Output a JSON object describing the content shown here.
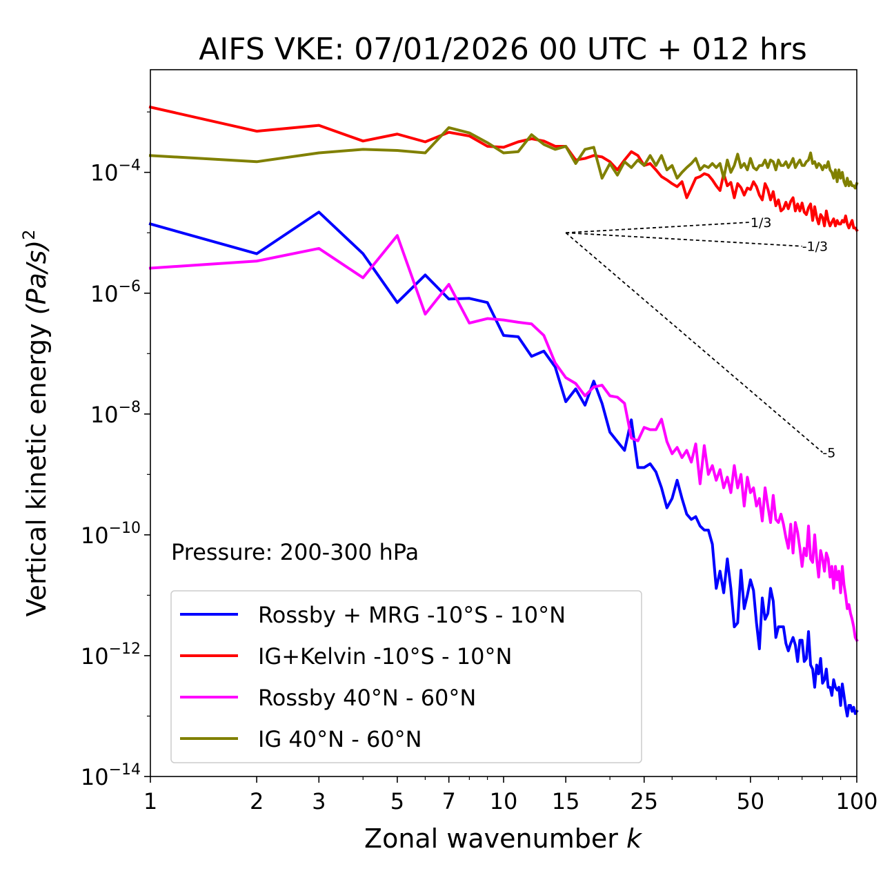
{
  "chart_data": {
    "type": "line",
    "title": "AIFS VKE: 07/01/2026 00 UTC + 012 hrs",
    "xlabel": "Zonal wavenumber ",
    "xlabel_italic": "k",
    "ylabel": "Vertical kinetic energy ",
    "ylabel_italic": "(Pa/s)",
    "ylabel_sup": "2",
    "xscale": "log",
    "yscale": "log",
    "xlim": [
      1,
      100
    ],
    "ylim": [
      1e-14,
      0.005
    ],
    "xticks": [
      1,
      2,
      3,
      5,
      7,
      10,
      15,
      25,
      50,
      100
    ],
    "xtick_labels": [
      "1",
      "2",
      "3",
      "5",
      "7",
      "10",
      "15",
      "25",
      "50",
      "100"
    ],
    "yticks": [
      {
        "base": "10",
        "exp": "−14",
        "value": 1e-14
      },
      {
        "base": "10",
        "exp": "−12",
        "value": 1e-12
      },
      {
        "base": "10",
        "exp": "−10",
        "value": 1e-10
      },
      {
        "base": "10",
        "exp": "−8",
        "value": 1e-08
      },
      {
        "base": "10",
        "exp": "−6",
        "value": 1e-06
      },
      {
        "base": "10",
        "exp": "−4",
        "value": 0.0001
      }
    ],
    "annotation": "Pressure: 200-300 hPa",
    "legend_position": "lower-left",
    "series": [
      {
        "name": "Rossby + MRG -10°S - 10°N",
        "color": "#0000ff",
        "x_start": 1,
        "values": [
          1.4e-05,
          4.5e-06,
          2.2e-05,
          4.5e-06,
          7e-07,
          2e-06,
          8e-07,
          8.2e-07,
          7e-07,
          2e-07,
          1.9e-07,
          9e-08,
          1.1e-07,
          6e-08,
          1.6e-08,
          2.6e-08,
          1.4e-08,
          3.5e-08,
          1.5e-08,
          5e-09,
          3.5e-09,
          2.5e-09,
          8e-09,
          1.3e-09,
          1.3e-09,
          1.5e-09,
          1.1e-09,
          6e-10,
          2.8e-10,
          4e-10,
          8e-10,
          4e-10,
          2.2e-10,
          1.8e-10,
          2e-10,
          1.4e-10,
          1.2e-10,
          1.2e-10,
          7e-11,
          1.3e-11,
          2.5e-11,
          1.1e-11,
          4e-11,
          1.3e-11,
          3e-12,
          3.5e-12,
          2.6e-11,
          6e-12,
          1e-11,
          1.8e-11,
          1.2e-11,
          3.5e-12,
          1.3e-12,
          9e-12,
          4e-12,
          5e-12,
          1.3e-11,
          8e-12,
          2e-12,
          3e-12,
          3e-12,
          3e-12,
          1.6e-12,
          1.2e-12,
          1.6e-12,
          2e-12,
          1.5e-12,
          8e-13,
          1.8e-12,
          1.8e-12,
          8e-13,
          9e-13,
          2.5e-12,
          7e-13,
          6e-13,
          3e-13,
          7e-13,
          5e-13,
          9e-13,
          3.5e-13,
          4e-13,
          6e-13,
          3e-13,
          3e-13,
          2.2e-13,
          4e-13,
          3e-13,
          2.7e-13,
          3e-13,
          1.5e-13,
          3.4e-13,
          2.2e-13,
          1.4e-13,
          1e-13,
          1.5e-13,
          1.5e-13,
          1.2e-13,
          1.4e-13,
          1.1e-13,
          1.2e-13
        ]
      },
      {
        "name": "IG+Kelvin -10°S - 10°N",
        "color": "#ff0000",
        "x_start": 1,
        "values": [
          0.0012,
          0.00048,
          0.0006,
          0.00033,
          0.00043,
          0.00032,
          0.00046,
          0.0004,
          0.00027,
          0.00026,
          0.00032,
          0.00036,
          0.00033,
          0.00027,
          0.00027,
          0.00016,
          0.00017,
          0.00019,
          0.00018,
          0.00015,
          0.00011,
          0.00016,
          0.00022,
          0.00019,
          0.00013,
          0.00014,
          0.00011,
          8.5e-05,
          7.5e-05,
          6.5e-05,
          5.8e-05,
          7e-05,
          3.8e-05,
          5.5e-05,
          8e-05,
          8.5e-05,
          9.5e-05,
          9e-05,
          7.5e-05,
          6e-05,
          5e-05,
          9.5e-05,
          6e-05,
          6.8e-05,
          3.8e-05,
          6.5e-05,
          5.6e-05,
          4.2e-05,
          5.5e-05,
          5.2e-05,
          7e-05,
          5.8e-05,
          4.2e-05,
          3.5e-05,
          6.5e-05,
          5.2e-05,
          3.5e-05,
          4.8e-05,
          2.8e-05,
          3.5e-05,
          2.3e-05,
          2.5e-05,
          3.2e-05,
          2.5e-05,
          3.3e-05,
          3.8e-05,
          2.3e-05,
          3e-05,
          2.3e-05,
          3.1e-05,
          2.2e-05,
          2e-05,
          2.6e-05,
          3e-05,
          1.6e-05,
          2.7e-05,
          1.8e-05,
          1.4e-05,
          2e-05,
          1.8e-05,
          1.3e-05,
          2.3e-05,
          1.6e-05,
          1.3e-05,
          1.5e-05,
          1.7e-05,
          1.3e-05,
          1.6e-05,
          1.4e-05,
          1.4e-05,
          1.6e-05,
          1.5e-05,
          1.9e-05,
          1.4e-05,
          1.2e-05,
          1.4e-05,
          1.6e-05,
          1.2e-05,
          1.2e-05,
          1.1e-05
        ]
      },
      {
        "name": "Rossby 40°N - 60°N",
        "color": "#ff00ff",
        "x_start": 1,
        "values": [
          2.6e-06,
          3.4e-06,
          5.5e-06,
          1.8e-06,
          9e-06,
          4.5e-07,
          1.4e-06,
          3.2e-07,
          3.8e-07,
          3.6e-07,
          3.3e-07,
          3.1e-07,
          2e-07,
          7e-08,
          4e-08,
          3.2e-08,
          2e-08,
          2.8e-08,
          3e-08,
          2e-08,
          1.9e-08,
          1.5e-08,
          4e-09,
          3.6e-09,
          6e-09,
          5.5e-09,
          5.5e-09,
          8.2e-09,
          3.5e-09,
          2.2e-09,
          2.8e-09,
          1.9e-09,
          2.5e-09,
          1.6e-09,
          3.2e-09,
          7e-10,
          3e-09,
          1e-09,
          1.4e-09,
          8e-10,
          1.2e-09,
          6e-10,
          9e-10,
          5e-10,
          1.4e-09,
          6e-10,
          1e-09,
          3e-10,
          9e-10,
          5e-10,
          6e-10,
          3e-10,
          4e-10,
          1.7e-10,
          6e-10,
          3e-10,
          1.6e-10,
          4.5e-10,
          1.8e-10,
          1.6e-10,
          2.2e-10,
          1.5e-10,
          9e-11,
          6e-11,
          1.5e-10,
          5e-11,
          1.6e-10,
          1.1e-10,
          6e-11,
          3e-11,
          6e-11,
          4.5e-11,
          1.4e-10,
          4e-11,
          3.5e-11,
          1e-10,
          4e-11,
          2e-11,
          5.5e-11,
          4e-11,
          2.5e-11,
          5e-11,
          4e-11,
          2e-11,
          3e-11,
          1.3e-11,
          3e-11,
          1.8e-11,
          2.5e-11,
          1.1e-11,
          3e-11,
          1.5e-11,
          1e-11,
          6e-12,
          7e-12,
          5e-12,
          4e-12,
          3e-12,
          2e-12,
          1.8e-12
        ]
      },
      {
        "name": "IG 40°N - 60°N",
        "color": "#808000",
        "x_start": 1,
        "values": [
          0.00019,
          0.00015,
          0.00021,
          0.00024,
          0.00023,
          0.00021,
          0.00055,
          0.00045,
          0.00031,
          0.00021,
          0.00022,
          0.00042,
          0.00029,
          0.00024,
          0.00027,
          0.00014,
          0.00024,
          0.00026,
          8e-05,
          0.00014,
          9e-05,
          0.00015,
          0.00012,
          0.00016,
          0.00013,
          0.00019,
          0.00013,
          0.00019,
          0.00011,
          0.00013,
          8e-05,
          0.0001,
          0.00012,
          0.00014,
          0.00017,
          0.00011,
          0.00013,
          0.00012,
          0.00014,
          0.00012,
          0.00014,
          8e-05,
          0.00016,
          0.0001,
          0.00013,
          0.0002,
          0.00012,
          0.00014,
          0.00011,
          0.00017,
          0.00012,
          0.00011,
          0.00013,
          0.00013,
          0.00016,
          0.00012,
          0.00016,
          0.00015,
          0.00011,
          0.00016,
          0.00013,
          0.00013,
          0.00015,
          0.00012,
          0.00014,
          0.00017,
          0.00012,
          0.00014,
          0.00016,
          0.00013,
          0.00013,
          0.00015,
          0.00016,
          0.00021,
          0.00014,
          0.00015,
          0.00012,
          0.00014,
          0.00013,
          0.00011,
          0.00013,
          0.00012,
          0.00015,
          0.00011,
          0.0001,
          8e-05,
          0.00011,
          7e-05,
          0.00011,
          8e-05,
          0.0001,
          7e-05,
          6e-05,
          8e-05,
          6e-05,
          7e-05,
          6e-05,
          6e-05,
          5.5e-05,
          6.5e-05
        ]
      }
    ],
    "reference_lines": [
      {
        "label": "1/3",
        "slope": 0.333,
        "x0": 15,
        "x1": 50
      },
      {
        "label": "-1/3",
        "slope": -0.333,
        "x0": 15,
        "x1": 70
      },
      {
        "label": "-5",
        "slope": -5,
        "x0": 15,
        "x1": 80
      }
    ],
    "reference_anchor_y": 1e-05
  }
}
